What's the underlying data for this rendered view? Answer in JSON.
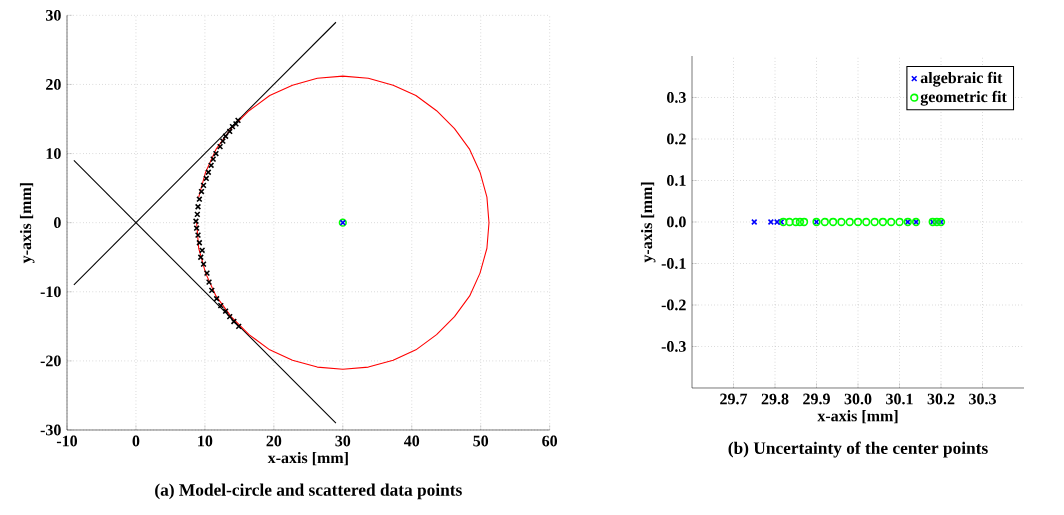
{
  "chart_data": [
    {
      "type": "scatter",
      "title": "(a) Model-circle and scattered data points",
      "xlabel": "x-axis [mm]",
      "ylabel": "y-axis [mm]",
      "xlim": [
        -10,
        60
      ],
      "ylim": [
        -30,
        30
      ],
      "xticks": [
        -10,
        0,
        10,
        20,
        30,
        40,
        50,
        60
      ],
      "yticks": [
        -30,
        -20,
        -10,
        0,
        10,
        20,
        30
      ],
      "grid": true,
      "legend": false,
      "series": [
        {
          "color": "#000000",
          "marker": "cross",
          "x": [
            14.8,
            14.5,
            14.0,
            13.6,
            13.0,
            12.6,
            12.2,
            11.6,
            11.2,
            10.9,
            10.5,
            10.2,
            9.8,
            9.5,
            9.2,
            9.0,
            8.9,
            8.7,
            8.8,
            9.0,
            9.2,
            9.6,
            9.4,
            9.8,
            10.3,
            10.6,
            11.0,
            11.7,
            12.3,
            13.0,
            13.6,
            14.2,
            14.9
          ],
          "values": [
            14.8,
            14.3,
            13.9,
            13.2,
            12.5,
            11.8,
            11.0,
            10.0,
            9.2,
            8.3,
            7.3,
            6.4,
            5.4,
            4.5,
            3.4,
            2.3,
            1.2,
            0.2,
            -0.8,
            -1.8,
            -2.9,
            -4.0,
            -5.0,
            -6.0,
            -7.3,
            -8.6,
            -9.8,
            -11.0,
            -12.0,
            -12.8,
            -13.6,
            -14.3,
            -15.0
          ]
        },
        {
          "type": "line",
          "color": "#000000",
          "marker": "none",
          "x": [
            -9,
            29
          ],
          "values": [
            -9,
            29
          ]
        },
        {
          "type": "line",
          "color": "#000000",
          "marker": "none",
          "x": [
            -9,
            29
          ],
          "values": [
            9,
            -29
          ]
        },
        {
          "type": "line",
          "color": "#ff0000",
          "marker": "none",
          "x": [
            8.8,
            9.1,
            10.1,
            11.6,
            13.8,
            16.4,
            19.4,
            22.7,
            26.3,
            30,
            33.7,
            37.3,
            40.6,
            43.6,
            46.2,
            48.4,
            49.9,
            50.9,
            51.2,
            50.9,
            49.9,
            48.4,
            46.2,
            43.6,
            40.6,
            37.3,
            33.7,
            30,
            26.3,
            22.7,
            19.4,
            16.4,
            13.8,
            11.6,
            10.1,
            9.1
          ],
          "values": [
            0,
            -3.7,
            -7.3,
            -10.6,
            -13.6,
            -16.2,
            -18.4,
            -19.9,
            -20.9,
            -21.2,
            -20.9,
            -19.9,
            -18.4,
            -16.2,
            -13.6,
            -10.6,
            -7.3,
            -3.7,
            0,
            3.7,
            7.3,
            10.6,
            13.6,
            16.2,
            18.4,
            19.9,
            20.9,
            21.2,
            20.9,
            19.9,
            18.4,
            16.2,
            13.6,
            10.6,
            7.3,
            3.7
          ]
        },
        {
          "color": "#00ff00",
          "marker": "circle",
          "x": [
            30
          ],
          "values": [
            0
          ]
        },
        {
          "color": "#0000ff",
          "marker": "cross",
          "x": [
            30
          ],
          "values": [
            0
          ]
        }
      ]
    },
    {
      "type": "scatter",
      "title": "(b) Uncertainty of the center points",
      "xlabel": "x-axis [mm]",
      "ylabel": "y-axis [mm]",
      "xlim": [
        29.6,
        30.4
      ],
      "ylim": [
        -0.4,
        0.4
      ],
      "xticks": [
        29.7,
        29.8,
        29.9,
        {
          "value": 30,
          "label": "30.0"
        },
        30.1,
        30.2,
        30.3
      ],
      "yticks": [
        -0.3,
        -0.2,
        -0.1,
        {
          "value": 0,
          "label": "0.0"
        },
        0.1,
        0.2,
        0.3
      ],
      "grid": true,
      "legend": "top right",
      "series": [
        {
          "name": "algebraic fit",
          "color": "#0000ff",
          "marker": "cross",
          "x": [
            29.75,
            29.79,
            29.805,
            29.815,
            29.9,
            30.12,
            30.14,
            30.18,
            30.19,
            30.2
          ],
          "values": [
            0,
            0,
            0,
            0,
            0,
            0,
            0,
            0,
            0,
            0
          ]
        },
        {
          "name": "geometric fit",
          "color": "#00ff00",
          "marker": "circle",
          "x": [
            29.82,
            29.835,
            29.85,
            29.86,
            29.87,
            29.9,
            29.92,
            29.94,
            29.96,
            29.98,
            30.0,
            30.02,
            30.04,
            30.06,
            30.08,
            30.1,
            30.12,
            30.14,
            30.18,
            30.19,
            30.2
          ],
          "values": [
            0,
            0,
            0,
            0,
            0,
            0,
            0,
            0,
            0,
            0,
            0,
            0,
            0,
            0,
            0,
            0,
            0,
            0,
            0,
            0,
            0
          ]
        }
      ]
    }
  ]
}
